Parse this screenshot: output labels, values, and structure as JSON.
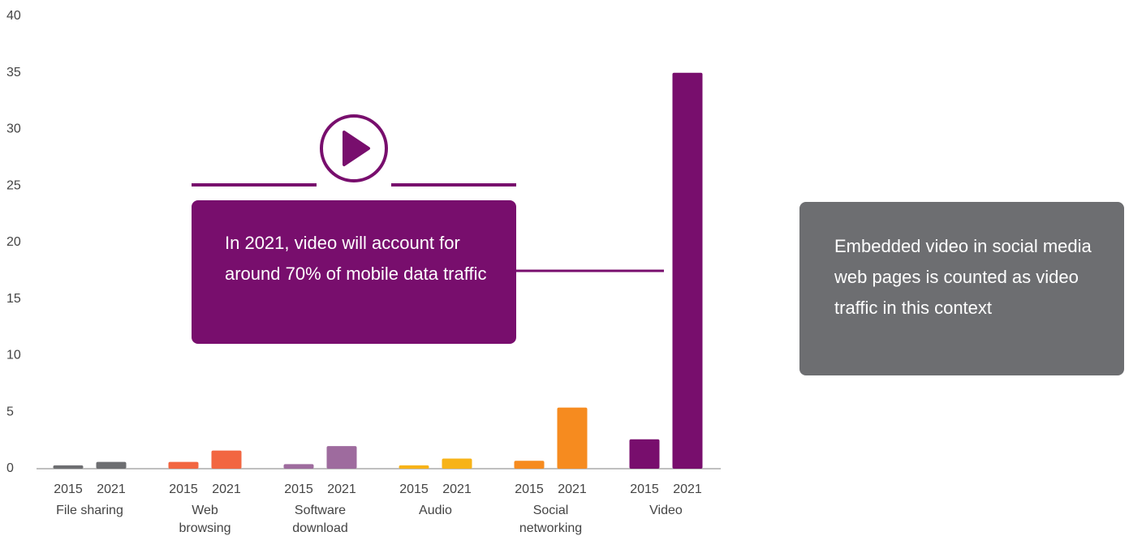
{
  "chart_data": {
    "type": "bar",
    "categories": [
      [
        "File sharing"
      ],
      [
        "Web",
        "browsing"
      ],
      [
        "Software",
        "download"
      ],
      [
        "Audio"
      ],
      [
        "Social",
        "networking"
      ],
      [
        "Video"
      ]
    ],
    "colors": [
      "#6d6e71",
      "#f26641",
      "#9e6b9e",
      "#f7b318",
      "#f68b1f",
      "#780e6d"
    ],
    "series": [
      {
        "name": "2015",
        "values": [
          0.3,
          0.6,
          0.4,
          0.3,
          0.7,
          2.6
        ]
      },
      {
        "name": "2021",
        "values": [
          0.6,
          1.6,
          2.0,
          0.9,
          5.4,
          35
        ]
      }
    ],
    "ylim": [
      0,
      40
    ],
    "yticks": [
      0,
      5,
      10,
      15,
      20,
      25,
      30,
      35,
      40
    ],
    "grid": false,
    "annotations": [
      "In 2021, video will account for around 70% of mobile data traffic",
      "Embedded video in social media web pages is counted as video traffic in this context"
    ]
  }
}
